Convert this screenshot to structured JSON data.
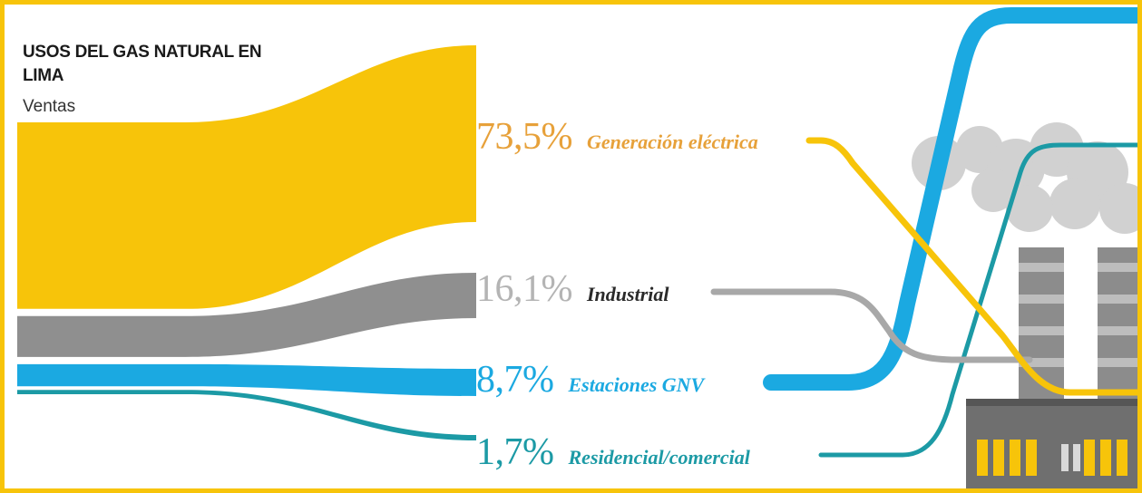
{
  "chart_data": {
    "type": "sankey",
    "title": "USOS DEL GAS NATURAL EN LIMA",
    "subtitle": "Ventas",
    "unit": "%",
    "categories": [
      "Generación eléctrica",
      "Industrial",
      "Estaciones GNV",
      "Residencial/comercial"
    ],
    "values": [
      73.5,
      16.1,
      8.7,
      1.7
    ],
    "value_labels": [
      "73,5%",
      "16,1%",
      "8,7%",
      "1,7%"
    ],
    "colors": [
      "#f7c40a",
      "#8f8f8f",
      "#1ba9e1",
      "#1c9aa5"
    ],
    "label_colors": [
      "#e7a13a",
      "#b4b4b4",
      "#1ba9e1",
      "#1c9aa5"
    ],
    "category_label_colors": [
      "#e7a13a",
      "#2a2a2a",
      "#1ba9e1",
      "#1c9aa5"
    ]
  },
  "colors": {
    "frame": "#f7c40a",
    "title": "#1a1a1a"
  }
}
